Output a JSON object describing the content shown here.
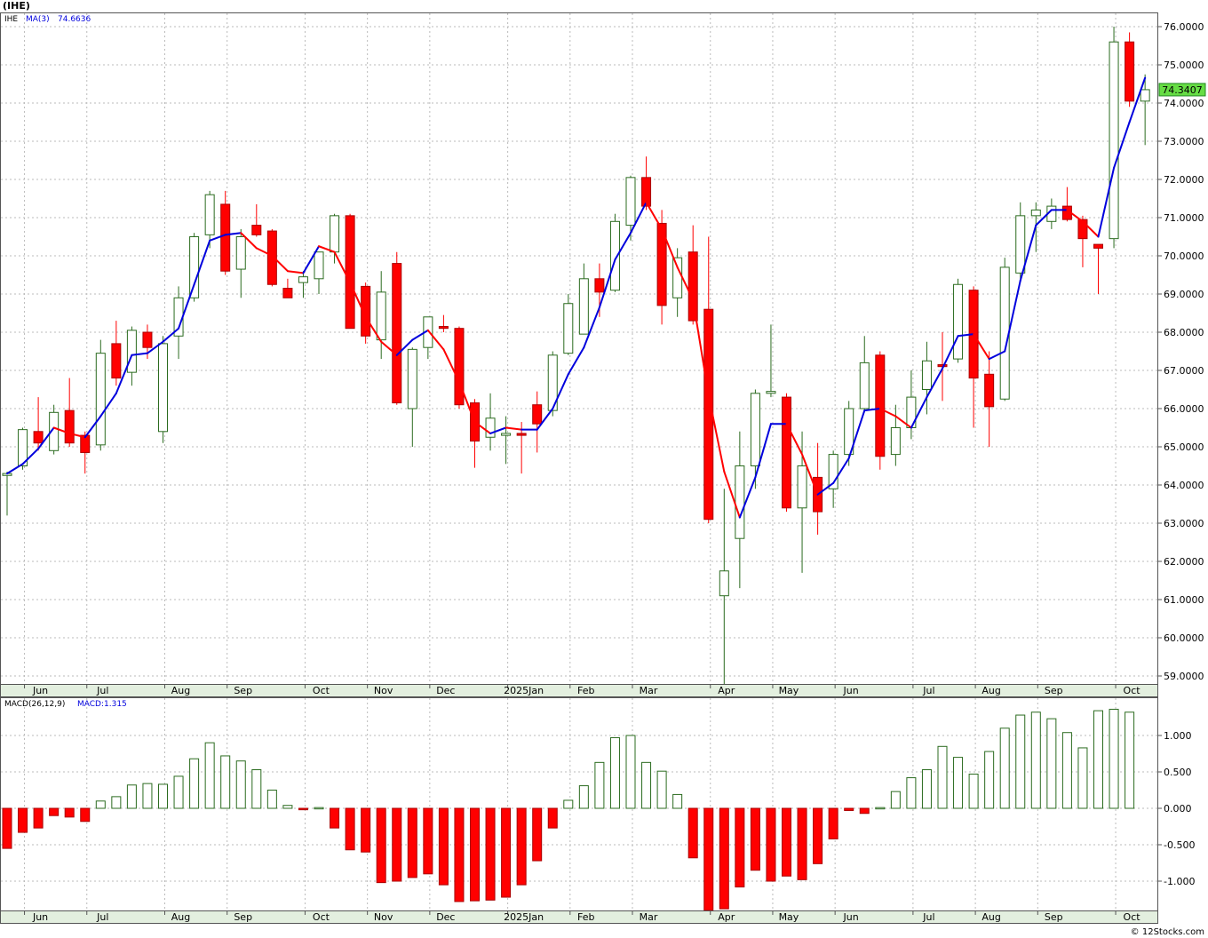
{
  "header": {
    "symbol": "(IHE)"
  },
  "watermark": "© 12Stocks.com",
  "colors": {
    "up": "#2b6b1f",
    "down": "#ff0000",
    "ma": "#0000dd",
    "grid": "#bbbbbb",
    "price_box": "#66dd44"
  },
  "chart_data": [
    {
      "type": "candlestick",
      "legend": {
        "symbol": "IHE",
        "ma_label": "MA(3)",
        "ma_value": "74.6636"
      },
      "last_price_label": "74.3407",
      "ylim": [
        58.75,
        76.35
      ],
      "y_ticks": [
        "59.0000",
        "60.0000",
        "61.0000",
        "62.0000",
        "63.0000",
        "64.0000",
        "65.0000",
        "66.0000",
        "67.0000",
        "68.0000",
        "69.0000",
        "70.0000",
        "71.0000",
        "72.0000",
        "73.0000",
        "74.0000",
        "75.0000",
        "76.0000"
      ],
      "x_ticks": [
        "Jun",
        "Jul",
        "Aug",
        "Sep",
        "Oct",
        "Nov",
        "Dec",
        "2025Jan",
        "Feb",
        "Mar",
        "Apr",
        "May",
        "Jun",
        "Jul",
        "Aug",
        "Sep",
        "Oct"
      ],
      "candles": [
        [
          64.25,
          64.35,
          63.2,
          64.3
        ],
        [
          64.5,
          65.5,
          64.4,
          65.45
        ],
        [
          65.4,
          66.3,
          64.9,
          65.1
        ],
        [
          64.9,
          66.1,
          64.8,
          65.9
        ],
        [
          65.95,
          66.8,
          65.0,
          65.1
        ],
        [
          65.3,
          65.4,
          64.3,
          64.85
        ],
        [
          65.05,
          67.8,
          64.9,
          67.45
        ],
        [
          67.7,
          68.3,
          66.6,
          66.8
        ],
        [
          66.95,
          68.15,
          66.6,
          68.05
        ],
        [
          68.0,
          68.2,
          67.3,
          67.6
        ],
        [
          65.4,
          67.9,
          65.1,
          67.7
        ],
        [
          67.9,
          69.2,
          67.3,
          68.9
        ],
        [
          68.9,
          70.6,
          68.8,
          70.5
        ],
        [
          70.55,
          71.7,
          70.2,
          71.6
        ],
        [
          71.35,
          71.7,
          69.5,
          69.6
        ],
        [
          69.65,
          70.7,
          68.9,
          70.5
        ],
        [
          70.8,
          71.35,
          70.5,
          70.55
        ],
        [
          70.65,
          70.7,
          69.2,
          69.25
        ],
        [
          69.15,
          69.4,
          68.9,
          68.9
        ],
        [
          69.3,
          69.6,
          68.9,
          69.45
        ],
        [
          69.4,
          70.1,
          69.0,
          70.1
        ],
        [
          70.1,
          71.1,
          69.8,
          71.05
        ],
        [
          71.05,
          71.1,
          68.1,
          68.1
        ],
        [
          69.2,
          69.3,
          67.7,
          67.9
        ],
        [
          67.8,
          69.6,
          67.3,
          69.05
        ],
        [
          69.8,
          70.1,
          66.1,
          66.15
        ],
        [
          66.0,
          67.6,
          65.0,
          67.55
        ],
        [
          67.6,
          68.4,
          67.3,
          68.4
        ],
        [
          68.15,
          68.45,
          68.0,
          68.1
        ],
        [
          68.1,
          68.15,
          66.0,
          66.1
        ],
        [
          66.15,
          66.25,
          64.45,
          65.15
        ],
        [
          65.25,
          66.4,
          64.9,
          65.75
        ],
        [
          65.3,
          65.8,
          64.55,
          65.35
        ],
        [
          65.35,
          65.65,
          64.3,
          65.3
        ],
        [
          66.1,
          66.45,
          64.85,
          65.6
        ],
        [
          65.95,
          67.5,
          65.8,
          67.4
        ],
        [
          67.45,
          69.0,
          67.4,
          68.75
        ],
        [
          67.95,
          69.8,
          67.95,
          69.4
        ],
        [
          69.4,
          69.8,
          68.4,
          69.05
        ],
        [
          69.1,
          71.1,
          69.05,
          70.9
        ],
        [
          70.8,
          72.1,
          70.4,
          72.05
        ],
        [
          72.05,
          72.6,
          71.2,
          71.3
        ],
        [
          70.85,
          71.2,
          68.2,
          68.7
        ],
        [
          68.9,
          70.2,
          68.4,
          69.95
        ],
        [
          70.1,
          70.8,
          68.2,
          68.3
        ],
        [
          68.6,
          70.5,
          63.0,
          63.1
        ],
        [
          61.1,
          63.9,
          58.75,
          61.75
        ],
        [
          62.6,
          65.4,
          61.3,
          64.5
        ],
        [
          64.5,
          66.5,
          63.9,
          66.4
        ],
        [
          66.4,
          68.2,
          66.3,
          66.45
        ],
        [
          66.3,
          66.4,
          63.3,
          63.4
        ],
        [
          63.4,
          65.4,
          61.7,
          64.5
        ],
        [
          64.2,
          65.1,
          62.7,
          63.3
        ],
        [
          63.9,
          64.9,
          63.4,
          64.8
        ],
        [
          64.8,
          66.2,
          64.5,
          66.0
        ],
        [
          66.0,
          67.9,
          65.9,
          67.2
        ],
        [
          67.4,
          67.5,
          64.4,
          64.75
        ],
        [
          64.8,
          66.1,
          64.5,
          65.5
        ],
        [
          65.5,
          67.0,
          65.2,
          66.3
        ],
        [
          66.5,
          67.75,
          65.85,
          67.25
        ],
        [
          67.15,
          68.0,
          66.2,
          67.1
        ],
        [
          67.3,
          69.4,
          67.2,
          69.25
        ],
        [
          69.1,
          69.2,
          65.5,
          66.8
        ],
        [
          66.9,
          67.5,
          65.0,
          66.05
        ],
        [
          66.25,
          69.95,
          66.2,
          69.7
        ],
        [
          69.55,
          71.4,
          69.4,
          71.05
        ],
        [
          71.05,
          71.4,
          70.1,
          71.2
        ],
        [
          70.9,
          71.5,
          70.7,
          71.3
        ],
        [
          71.3,
          71.8,
          70.9,
          70.95
        ],
        [
          70.95,
          71.05,
          69.7,
          70.45
        ],
        [
          70.3,
          70.3,
          69.0,
          70.2
        ],
        [
          70.45,
          76.0,
          70.2,
          75.6
        ],
        [
          75.6,
          75.85,
          73.9,
          74.05
        ],
        [
          74.05,
          74.75,
          72.9,
          74.35
        ]
      ],
      "ma3": [
        64.3,
        64.55,
        64.95,
        65.5,
        65.35,
        65.25,
        65.8,
        66.4,
        67.4,
        67.45,
        67.75,
        68.1,
        69.25,
        70.4,
        70.55,
        70.6,
        70.2,
        70.0,
        69.6,
        69.55,
        70.25,
        70.1,
        69.3,
        68.4,
        67.75,
        67.4,
        67.8,
        68.05,
        67.55,
        66.7,
        65.65,
        65.35,
        65.5,
        65.45,
        65.45,
        66.0,
        66.9,
        67.6,
        68.65,
        69.9,
        70.6,
        71.4,
        70.7,
        69.7,
        68.85,
        66.35,
        64.35,
        63.15,
        64.2,
        65.6,
        65.6,
        64.8,
        63.75,
        64.05,
        64.7,
        65.95,
        66.0,
        65.8,
        65.5,
        66.3,
        67.05,
        67.9,
        67.95,
        67.3,
        67.5,
        69.35,
        70.8,
        71.2,
        71.2,
        70.9,
        70.5,
        72.3,
        73.5,
        74.66
      ]
    },
    {
      "type": "bar",
      "legend": {
        "title": "MACD(26,12,9)",
        "value_label": "MACD:1.315"
      },
      "ylim": [
        -1.4,
        1.5
      ],
      "y_ticks": [
        "1.000",
        "0.500",
        "0.000",
        "-0.500",
        "-1.000"
      ],
      "x_ticks": [
        "Jun",
        "Jul",
        "Aug",
        "Sep",
        "Oct",
        "Nov",
        "Dec",
        "2025Jan",
        "Feb",
        "Mar",
        "Apr",
        "May",
        "Jun",
        "Jul",
        "Aug",
        "Sep",
        "Oct"
      ],
      "values": [
        -0.55,
        -0.33,
        -0.27,
        -0.1,
        -0.12,
        -0.18,
        0.1,
        0.16,
        0.32,
        0.34,
        0.33,
        0.44,
        0.68,
        0.9,
        0.72,
        0.65,
        0.53,
        0.25,
        0.04,
        -0.02,
        0.01,
        -0.27,
        -0.57,
        -0.6,
        -1.02,
        -1.0,
        -0.95,
        -0.9,
        -1.05,
        -1.28,
        -1.27,
        -1.26,
        -1.22,
        -1.05,
        -0.72,
        -0.27,
        0.11,
        0.31,
        0.63,
        0.97,
        1.0,
        0.63,
        0.51,
        0.19,
        -0.68,
        -1.42,
        -1.38,
        -1.08,
        -0.85,
        -1.0,
        -0.93,
        -0.98,
        -0.76,
        -0.42,
        -0.03,
        -0.07,
        0.01,
        0.23,
        0.42,
        0.53,
        0.85,
        0.7,
        0.47,
        0.78,
        1.1,
        1.28,
        1.32,
        1.23,
        1.04,
        0.83,
        1.34,
        1.36,
        1.32
      ]
    }
  ]
}
